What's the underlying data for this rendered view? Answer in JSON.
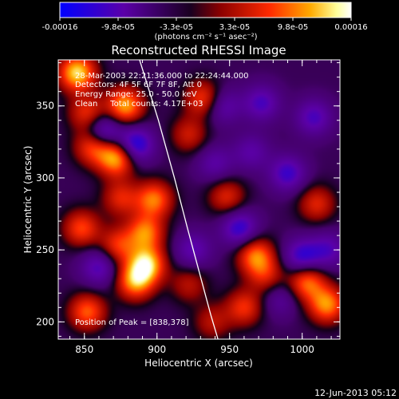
{
  "colorbar": {
    "ticks": [
      "-0.00016",
      "-9.8e-05",
      "-3.3e-05",
      "3.3e-05",
      "9.8e-05",
      "0.00016"
    ],
    "unit_label": "(photons cm⁻² s⁻¹ asec⁻²)",
    "colors": [
      "#0000ff",
      "#5b00a8",
      "#000000",
      "#8a0000",
      "#ff2a00",
      "#ffaa00",
      "#ffff9a",
      "#ffffff"
    ]
  },
  "chart_data": {
    "type": "heatmap",
    "title": "Reconstructed RHESSI Image",
    "xlabel": "Heliocentric X (arcsec)",
    "ylabel": "Heliocentric Y (arcsec)",
    "xlim": [
      832,
      1026
    ],
    "ylim": [
      188,
      382
    ],
    "xticks": [
      850,
      900,
      950,
      1000
    ],
    "yticks": [
      200,
      250,
      300,
      350
    ],
    "zlim": [
      -0.00016,
      0.00016
    ],
    "annotations": {
      "time_range": "28-Mar-2003 22:21:36.000 to 22:24:44.000",
      "detectors": "Detectors: 4F 5F 6F 7F 8F, Att 0",
      "energy_range": "Energy Range: 25.0 - 50.0 keV",
      "method_counts": "Clean     Total counts: 4.17E+03",
      "peak_position": "Position of Peak = [838,378]"
    },
    "limb_curve": {
      "x": [
        888,
        901,
        912,
        921,
        929,
        937,
        942
      ],
      "y": [
        382,
        340,
        300,
        265,
        235,
        205,
        188
      ]
    },
    "peaks": [
      {
        "x": 845,
        "y": 373,
        "value": 0.00016
      },
      {
        "x": 878,
        "y": 350,
        "value": 0.00014
      },
      {
        "x": 856,
        "y": 322,
        "value": 0.00011
      },
      {
        "x": 872,
        "y": 314,
        "value": 0.00015
      },
      {
        "x": 898,
        "y": 285,
        "value": 0.00012
      },
      {
        "x": 892,
        "y": 262,
        "value": 0.00012
      },
      {
        "x": 893,
        "y": 240,
        "value": 0.00015
      },
      {
        "x": 885,
        "y": 228,
        "value": 0.00013
      },
      {
        "x": 875,
        "y": 286,
        "value": 8e-05
      },
      {
        "x": 848,
        "y": 265,
        "value": 0.0001
      },
      {
        "x": 873,
        "y": 253,
        "value": 9e-05
      },
      {
        "x": 852,
        "y": 207,
        "value": 0.00011
      },
      {
        "x": 852,
        "y": 345,
        "value": 9e-05
      },
      {
        "x": 932,
        "y": 355,
        "value": 0.0001
      },
      {
        "x": 922,
        "y": 330,
        "value": 7e-05
      },
      {
        "x": 948,
        "y": 287,
        "value": 8e-05
      },
      {
        "x": 968,
        "y": 246,
        "value": 0.00012
      },
      {
        "x": 975,
        "y": 232,
        "value": 7e-05
      },
      {
        "x": 1003,
        "y": 228,
        "value": 0.00012
      },
      {
        "x": 1017,
        "y": 212,
        "value": 0.00013
      },
      {
        "x": 960,
        "y": 210,
        "value": 9e-05
      },
      {
        "x": 1010,
        "y": 282,
        "value": 8e-05
      },
      {
        "x": 922,
        "y": 226,
        "value": 6e-05
      },
      {
        "x": 938,
        "y": 200,
        "value": 6e-05
      },
      {
        "x": 945,
        "y": 350,
        "value": -7e-05
      },
      {
        "x": 863,
        "y": 332,
        "value": -0.00011
      },
      {
        "x": 885,
        "y": 323,
        "value": -0.00012
      },
      {
        "x": 990,
        "y": 303,
        "value": -9e-05
      },
      {
        "x": 1000,
        "y": 245,
        "value": -0.0001
      },
      {
        "x": 957,
        "y": 265,
        "value": -0.0001
      },
      {
        "x": 1018,
        "y": 250,
        "value": -7e-05
      },
      {
        "x": 1008,
        "y": 342,
        "value": -8e-05
      },
      {
        "x": 972,
        "y": 352,
        "value": -8e-05
      },
      {
        "x": 940,
        "y": 310,
        "value": -6e-05
      },
      {
        "x": 925,
        "y": 250,
        "value": -7e-05
      },
      {
        "x": 860,
        "y": 238,
        "value": -8e-05
      },
      {
        "x": 985,
        "y": 216,
        "value": -5e-05
      },
      {
        "x": 965,
        "y": 318,
        "value": -6e-05
      }
    ]
  },
  "footer": {
    "date": "12-Jun-2013 05:12"
  }
}
